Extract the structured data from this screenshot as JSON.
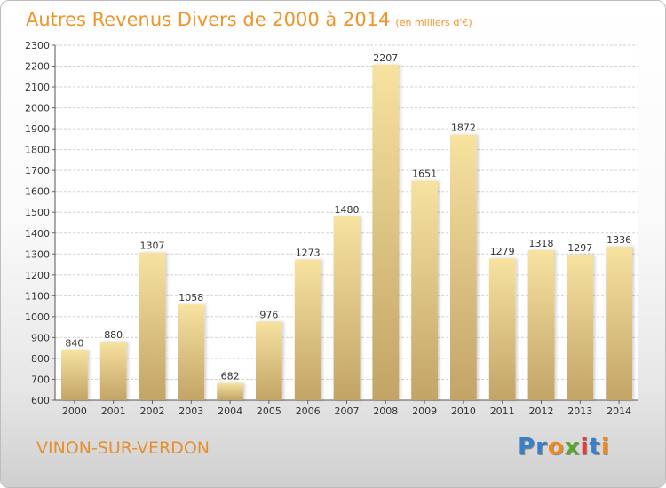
{
  "title": "Autres Revenus Divers de 2000 à 2014",
  "unit": "(en milliers d'€)",
  "city": "VINON-SUR-VERDON",
  "logo": {
    "text": "Proxiti",
    "letters": [
      {
        "char": "P",
        "color": "#3b7fc4"
      },
      {
        "char": "r",
        "color": "#3b7fc4"
      },
      {
        "char": "o",
        "color": "#f08a1c"
      },
      {
        "char": "x",
        "color": "#5aa62e"
      },
      {
        "char": "i",
        "color": "#e23b3b"
      },
      {
        "char": "t",
        "color": "#3b7fc4"
      },
      {
        "char": "i",
        "color": "#f08a1c"
      }
    ]
  },
  "colors": {
    "title": "#f0942a",
    "bar_top": "#f7e2a0",
    "bar_bottom": "#c2a466",
    "grid": "#d2d2d2"
  },
  "chart_data": {
    "type": "bar",
    "title": "Autres Revenus Divers de 2000 à 2014",
    "xlabel": "",
    "ylabel": "",
    "ylim": [
      600,
      2300
    ],
    "ytick_step": 100,
    "grid": true,
    "categories": [
      "2000",
      "2001",
      "2002",
      "2003",
      "2004",
      "2005",
      "2006",
      "2007",
      "2008",
      "2009",
      "2010",
      "2011",
      "2012",
      "2013",
      "2014"
    ],
    "values": [
      840,
      880,
      1307,
      1058,
      682,
      976,
      1273,
      1480,
      2207,
      1651,
      1872,
      1279,
      1318,
      1297,
      1336
    ]
  }
}
